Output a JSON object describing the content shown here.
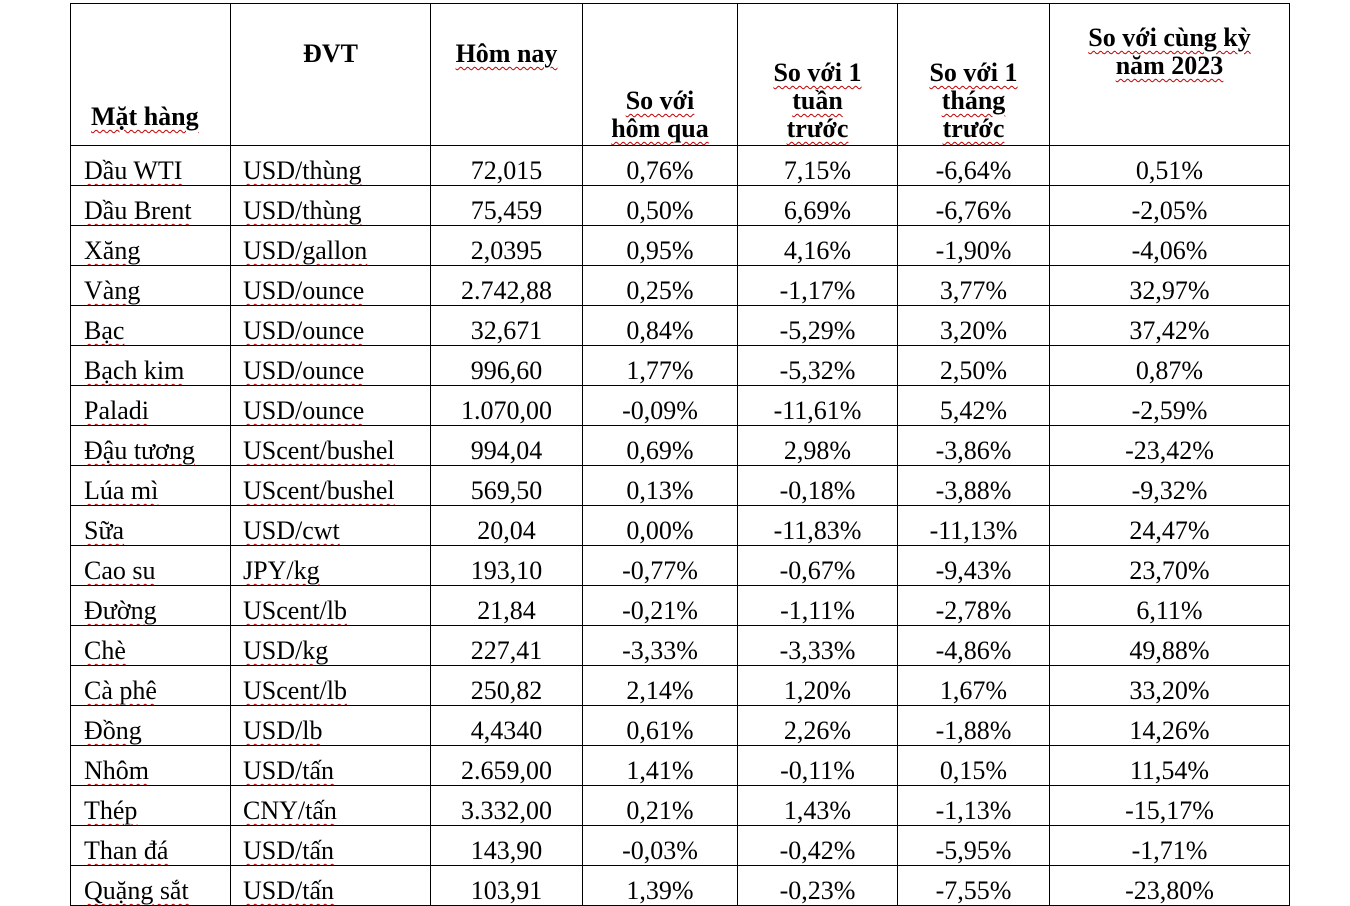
{
  "headers": {
    "item": "Mặt hàng",
    "unit": "ĐVT",
    "today": "Hôm nay",
    "vs_yesterday": [
      "So với",
      "hôm qua"
    ],
    "vs_week": [
      "So với 1",
      "tuần",
      "trước"
    ],
    "vs_month": [
      "So với 1",
      "tháng",
      "trước"
    ],
    "vs_year": [
      "So với cùng kỳ",
      "năm 2023"
    ]
  },
  "rows": [
    {
      "item": "Dầu WTI",
      "unit": "USD/thùng",
      "today": "72,015",
      "day": "0,76%",
      "week": "7,15%",
      "month": "-6,64%",
      "year": "0,51%"
    },
    {
      "item": "Dầu Brent",
      "unit": "USD/thùng",
      "today": "75,459",
      "day": "0,50%",
      "week": "6,69%",
      "month": "-6,76%",
      "year": "-2,05%"
    },
    {
      "item": "Xăng",
      "unit": "USD/gallon",
      "today": "2,0395",
      "day": "0,95%",
      "week": "4,16%",
      "month": "-1,90%",
      "year": "-4,06%"
    },
    {
      "item": "Vàng",
      "unit": "USD/ounce",
      "today": "2.742,88",
      "day": "0,25%",
      "week": "-1,17%",
      "month": "3,77%",
      "year": "32,97%"
    },
    {
      "item": "Bạc",
      "unit": "USD/ounce",
      "today": "32,671",
      "day": "0,84%",
      "week": "-5,29%",
      "month": "3,20%",
      "year": "37,42%"
    },
    {
      "item": "Bạch kim",
      "unit": "USD/ounce",
      "today": "996,60",
      "day": "1,77%",
      "week": "-5,32%",
      "month": "2,50%",
      "year": "0,87%"
    },
    {
      "item": "Paladi",
      "unit": "USD/ounce",
      "today": "1.070,00",
      "day": "-0,09%",
      "week": "-11,61%",
      "month": "5,42%",
      "year": "-2,59%"
    },
    {
      "item": "Đậu tương",
      "unit": "UScent/bushel",
      "today": "994,04",
      "day": "0,69%",
      "week": "2,98%",
      "month": "-3,86%",
      "year": "-23,42%"
    },
    {
      "item": "Lúa mì",
      "unit": "UScent/bushel",
      "today": "569,50",
      "day": "0,13%",
      "week": "-0,18%",
      "month": "-3,88%",
      "year": "-9,32%"
    },
    {
      "item": "Sữa",
      "unit": "USD/cwt",
      "today": "20,04",
      "day": "0,00%",
      "week": "-11,83%",
      "month": "-11,13%",
      "year": "24,47%"
    },
    {
      "item": "Cao su",
      "unit": "JPY/kg",
      "today": "193,10",
      "day": "-0,77%",
      "week": "-0,67%",
      "month": "-9,43%",
      "year": "23,70%"
    },
    {
      "item": "Đường",
      "unit": "UScent/lb",
      "today": "21,84",
      "day": "-0,21%",
      "week": "-1,11%",
      "month": "-2,78%",
      "year": "6,11%"
    },
    {
      "item": "Chè",
      "unit": "USD/kg",
      "today": "227,41",
      "day": "-3,33%",
      "week": "-3,33%",
      "month": "-4,86%",
      "year": "49,88%"
    },
    {
      "item": "Cà phê",
      "unit": "UScent/lb",
      "today": "250,82",
      "day": "2,14%",
      "week": "1,20%",
      "month": "1,67%",
      "year": "33,20%"
    },
    {
      "item": "Đồng",
      "unit": "USD/lb",
      "today": "4,4340",
      "day": "0,61%",
      "week": "2,26%",
      "month": "-1,88%",
      "year": "14,26%"
    },
    {
      "item": "Nhôm",
      "unit": "USD/tấn",
      "today": "2.659,00",
      "day": "1,41%",
      "week": "-0,11%",
      "month": "0,15%",
      "year": "11,54%"
    },
    {
      "item": "Thép",
      "unit": "CNY/tấn",
      "today": "3.332,00",
      "day": "0,21%",
      "week": "1,43%",
      "month": "-1,13%",
      "year": "-15,17%"
    },
    {
      "item": "Than đá",
      "unit": "USD/tấn",
      "today": "143,90",
      "day": "-0,03%",
      "week": "-0,42%",
      "month": "-5,95%",
      "year": "-1,71%"
    },
    {
      "item": "Quặng sắt",
      "unit": "USD/tấn",
      "today": "103,91",
      "day": "1,39%",
      "week": "-0,23%",
      "month": "-7,55%",
      "year": "-23,80%"
    }
  ]
}
